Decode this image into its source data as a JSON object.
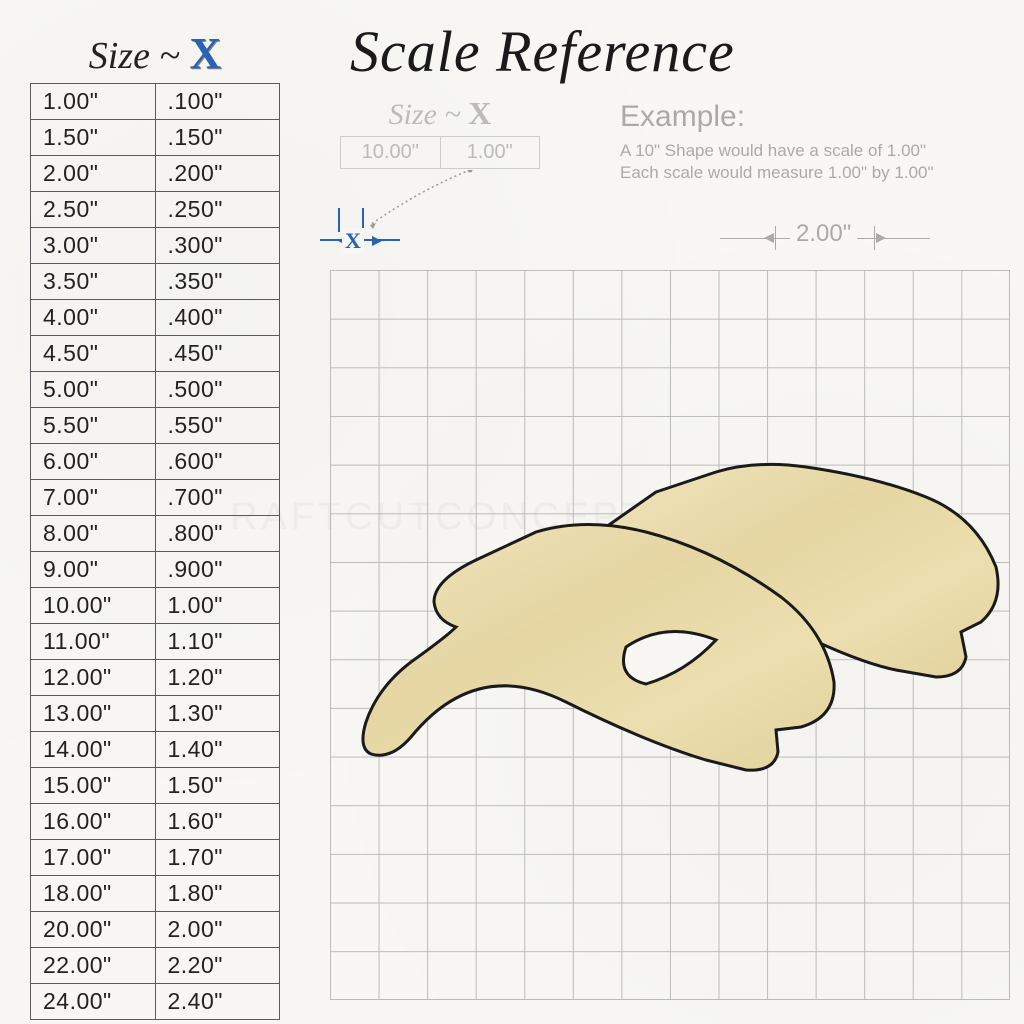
{
  "title": "Scale Reference",
  "sizeTable": {
    "headerPrefix": "Size ~ ",
    "headerX": "X",
    "rows": [
      [
        "1.00\"",
        ".100\""
      ],
      [
        "1.50\"",
        ".150\""
      ],
      [
        "2.00\"",
        ".200\""
      ],
      [
        "2.50\"",
        ".250\""
      ],
      [
        "3.00\"",
        ".300\""
      ],
      [
        "3.50\"",
        ".350\""
      ],
      [
        "4.00\"",
        ".400\""
      ],
      [
        "4.50\"",
        ".450\""
      ],
      [
        "5.00\"",
        ".500\""
      ],
      [
        "5.50\"",
        ".550\""
      ],
      [
        "6.00\"",
        ".600\""
      ],
      [
        "7.00\"",
        ".700\""
      ],
      [
        "8.00\"",
        ".800\""
      ],
      [
        "9.00\"",
        ".900\""
      ],
      [
        "10.00\"",
        "1.00\""
      ],
      [
        "11.00\"",
        "1.10\""
      ],
      [
        "12.00\"",
        "1.20\""
      ],
      [
        "13.00\"",
        "1.30\""
      ],
      [
        "14.00\"",
        "1.40\""
      ],
      [
        "15.00\"",
        "1.50\""
      ],
      [
        "16.00\"",
        "1.60\""
      ],
      [
        "17.00\"",
        "1.70\""
      ],
      [
        "18.00\"",
        "1.80\""
      ],
      [
        "20.00\"",
        "2.00\""
      ],
      [
        "22.00\"",
        "2.20\""
      ],
      [
        "24.00\"",
        "2.40\""
      ]
    ]
  },
  "miniExample": {
    "headerPrefix": "Size ~ ",
    "headerX": "X",
    "cell1": "10.00\"",
    "cell2": "1.00\""
  },
  "example": {
    "title": "Example:",
    "line1": "A 10\" Shape would have a scale of 1.00\"",
    "line2": "Each scale would measure 1.00\" by 1.00\""
  },
  "dimensions": {
    "xLabel": "X",
    "gridWidthLabel": "2.00\""
  },
  "grid": {
    "cols": 14,
    "rows": 15,
    "lineColor": "#bbbbbb",
    "cellSizeInches": 1.0
  },
  "colors": {
    "accentBlue": "#2a62b4",
    "textDark": "#222222",
    "textMuted": "#aaaaaa",
    "borderGrey": "#5a5a5a",
    "background": "#f8f7f4",
    "shapeFill": "#e8d9a8",
    "shapeStroke": "#1a1a1a"
  },
  "watermark": "RAFTCUTCONCEPTS"
}
